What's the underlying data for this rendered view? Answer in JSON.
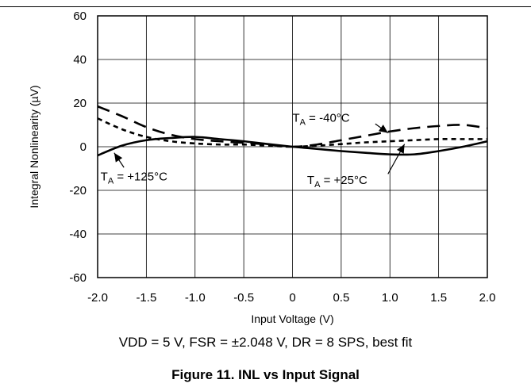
{
  "chart_data": {
    "type": "line",
    "xlabel": "Input Voltage (V)",
    "ylabel": "Integral Nonlinearity (µV)",
    "xlim": [
      -2.0,
      2.0
    ],
    "ylim": [
      -60,
      60
    ],
    "xticks": [
      "-2.0",
      "-1.5",
      "-1.0",
      "-0.5",
      "0",
      "0.5",
      "1.0",
      "1.5",
      "2.0"
    ],
    "yticks": [
      "60",
      "40",
      "20",
      "0",
      "-20",
      "-40",
      "-60"
    ],
    "grid": true,
    "series": [
      {
        "name": "TA = -40°C",
        "style": "long-dash",
        "x": [
          -2.0,
          -1.75,
          -1.5,
          -1.25,
          -1.0,
          -0.75,
          -0.5,
          -0.25,
          0.0,
          0.25,
          0.5,
          0.75,
          1.0,
          1.25,
          1.5,
          1.75,
          2.0
        ],
        "y": [
          18.5,
          14.0,
          9.0,
          5.5,
          3.5,
          2.5,
          1.8,
          1.0,
          0.0,
          1.0,
          3.0,
          5.0,
          7.0,
          8.5,
          9.5,
          10.0,
          8.5
        ]
      },
      {
        "name": "TA = +25°C",
        "style": "short-dash",
        "x": [
          -2.0,
          -1.75,
          -1.5,
          -1.25,
          -1.0,
          -0.75,
          -0.5,
          -0.25,
          0.0,
          0.25,
          0.5,
          0.75,
          1.0,
          1.25,
          1.5,
          1.75,
          2.0
        ],
        "y": [
          13.0,
          8.0,
          4.5,
          2.5,
          1.5,
          1.0,
          1.0,
          0.5,
          0.0,
          0.5,
          1.2,
          2.0,
          2.5,
          3.0,
          3.5,
          3.5,
          3.5
        ]
      },
      {
        "name": "TA = +125°C",
        "style": "solid",
        "x": [
          -2.0,
          -1.75,
          -1.5,
          -1.25,
          -1.0,
          -0.75,
          -0.5,
          -0.25,
          0.0,
          0.25,
          0.5,
          0.75,
          1.0,
          1.25,
          1.5,
          1.75,
          2.0
        ],
        "y": [
          -4.0,
          0.5,
          3.0,
          4.0,
          4.5,
          3.5,
          2.5,
          1.2,
          0.0,
          -1.0,
          -2.0,
          -2.8,
          -3.5,
          -3.5,
          -2.0,
          0.0,
          2.5
        ]
      }
    ],
    "annotations": [
      {
        "prefix": "T",
        "sub": "A",
        "text": " = -40°C",
        "series": 0
      },
      {
        "prefix": "T",
        "sub": "A",
        "text": " = +25°C",
        "series": 1
      },
      {
        "prefix": "T",
        "sub": "A",
        "text": " = +125°C",
        "series": 2
      }
    ]
  },
  "conditions": "VDD = 5 V, FSR = ±2.048 V, DR = 8 SPS, best fit",
  "caption": "Figure 11. INL vs Input Signal"
}
